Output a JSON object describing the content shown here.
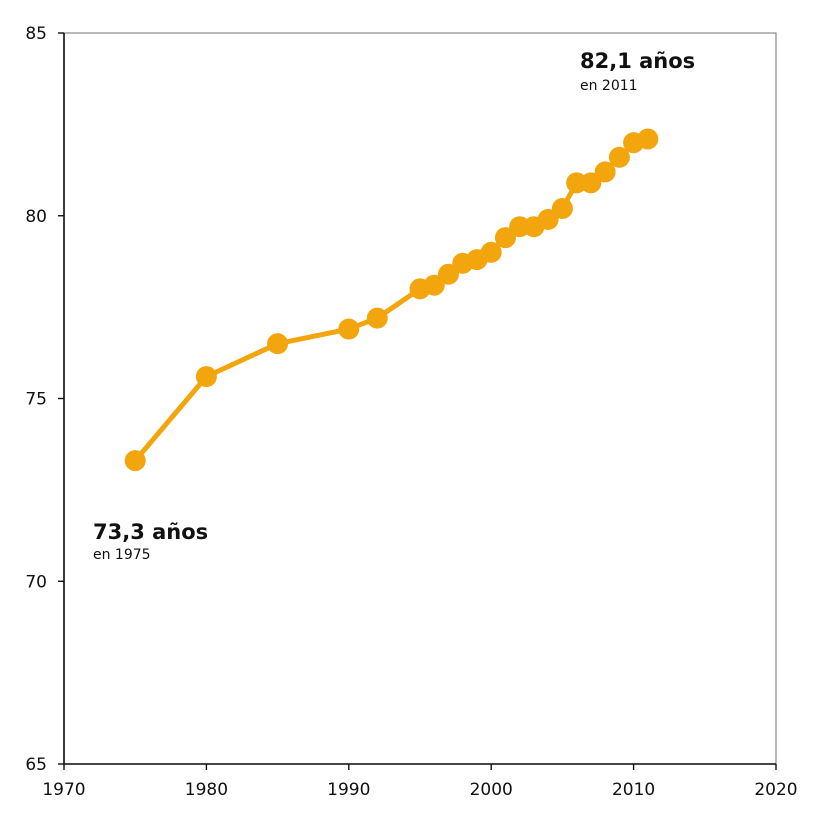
{
  "chart_data": {
    "type": "line",
    "title": "",
    "xlabel": "",
    "ylabel": "",
    "xlim": [
      1970,
      2020
    ],
    "ylim": [
      65,
      85
    ],
    "x_ticks": [
      1970,
      1980,
      1990,
      2000,
      2010,
      2020
    ],
    "y_ticks": [
      65,
      70,
      75,
      80,
      85
    ],
    "grid": false,
    "series": [
      {
        "color": "#f2a50c",
        "x": [
          1975,
          1980,
          1985,
          1990,
          1992,
          1995,
          1996,
          1997,
          1998,
          1999,
          2000,
          2001,
          2002,
          2003,
          2004,
          2005,
          2006,
          2007,
          2008,
          2009,
          2010,
          2011
        ],
        "y": [
          73.3,
          75.6,
          76.5,
          76.9,
          77.2,
          78.0,
          78.1,
          78.4,
          78.7,
          78.8,
          79.0,
          79.4,
          79.7,
          79.7,
          79.9,
          80.2,
          80.9,
          80.9,
          81.2,
          81.6,
          82.0,
          82.1
        ]
      }
    ],
    "annotations": [
      {
        "value": "73,3 años",
        "sub": "en 1975"
      },
      {
        "value": "82,1 años",
        "sub": "en 2011"
      }
    ]
  }
}
